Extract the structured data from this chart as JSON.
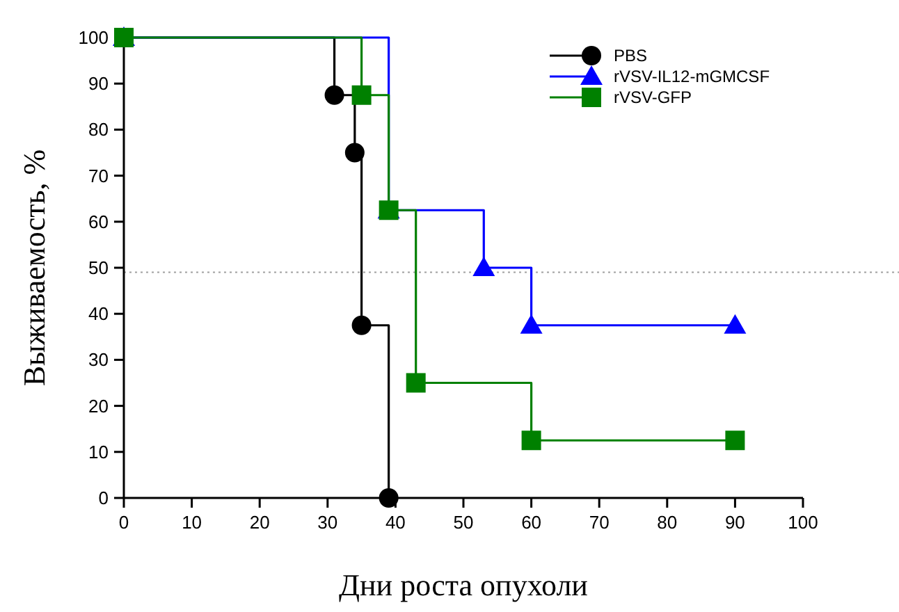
{
  "chart_data": {
    "type": "step",
    "xlabel": "Дни роста опухоли",
    "ylabel": "Выживаемость, %",
    "xlim": [
      0,
      100
    ],
    "ylim": [
      0,
      100
    ],
    "xticks": [
      0,
      10,
      20,
      30,
      40,
      50,
      60,
      70,
      80,
      90,
      100
    ],
    "yticks": [
      0,
      10,
      20,
      30,
      40,
      50,
      60,
      70,
      80,
      90,
      100
    ],
    "legend": "top right",
    "grid": false,
    "ref_lines": [
      {
        "axis": "y",
        "value": 49,
        "color": "#a0a0a0",
        "line_style": "dotted"
      }
    ],
    "series": [
      {
        "name": "PBS",
        "color": "#000000",
        "marker": "circle",
        "x": [
          0,
          31,
          34,
          35,
          39
        ],
        "values": [
          100,
          87.5,
          75,
          37.5,
          0
        ]
      },
      {
        "name": "rVSV-IL12-mGMCSF",
        "color": "#0000ff",
        "marker": "triangle",
        "x": [
          0,
          39,
          53,
          60,
          90
        ],
        "values": [
          100,
          62.5,
          50,
          37.5,
          37.5
        ]
      },
      {
        "name": "rVSV-GFP",
        "color": "#008000",
        "marker": "square",
        "x": [
          0,
          35,
          39,
          43,
          60,
          90
        ],
        "values": [
          100,
          87.5,
          62.5,
          25,
          12.5,
          12.5
        ]
      }
    ]
  }
}
